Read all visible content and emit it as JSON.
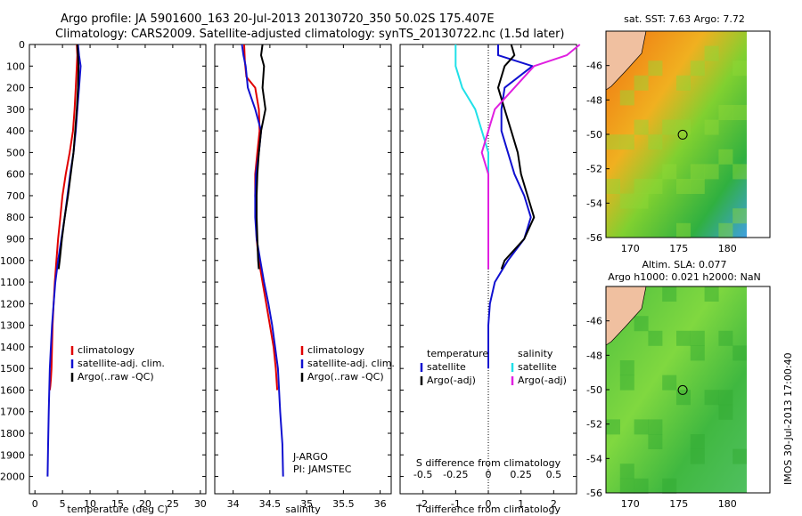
{
  "header": {
    "line1": "Argo profile: JA 5901600_163 20-Jul-2013 20130720_350 50.02S 175.407E",
    "line2": "Climatology: CARS2009. Satellite-adjusted climatology: synTS_20130722.nc (1.5d later)"
  },
  "side_label": "IMOS 30-Jul-2013 17:00:40",
  "colors": {
    "climatology": "#e00000",
    "satellite": "#1010d0",
    "argo": "#000000",
    "sat_salinity": "#20e0e8",
    "argo_salinity": "#e020e0"
  },
  "chart_data": [
    {
      "type": "line",
      "xlabel": "temperature (deg C)",
      "xlim": [
        -1,
        31
      ],
      "ylim": [
        0,
        2080
      ],
      "y_reversed": true,
      "xticks": [
        0,
        5,
        10,
        15,
        20,
        25,
        30
      ],
      "yticks": [
        0,
        100,
        200,
        300,
        400,
        500,
        600,
        700,
        800,
        900,
        1000,
        1100,
        1200,
        1300,
        1400,
        1500,
        1600,
        1700,
        1800,
        1900,
        2000
      ],
      "legend": [
        "climatology",
        "satellite-adj. clim.",
        "Argo(..raw -QC)"
      ],
      "series": [
        {
          "name": "climatology",
          "x": [
            7.6,
            7.7,
            7.6,
            7.4,
            7.2,
            6.9,
            6.3,
            5.6,
            5.0,
            4.6,
            4.2,
            3.9,
            3.6,
            3.4,
            3.2,
            3.1,
            3.0,
            2.9,
            2.8,
            2.7
          ],
          "y": [
            0,
            50,
            100,
            200,
            300,
            400,
            500,
            600,
            700,
            800,
            900,
            1000,
            1100,
            1200,
            1300,
            1400,
            1500,
            1550,
            1580,
            1600
          ]
        },
        {
          "name": "satellite-adj. clim.",
          "x": [
            7.8,
            8.0,
            8.3,
            8.0,
            7.7,
            7.4,
            7.0,
            6.4,
            5.9,
            5.4,
            4.8,
            4.2,
            3.7,
            3.4,
            3.1,
            2.9,
            2.7,
            2.5,
            2.4,
            2.3
          ],
          "y": [
            0,
            50,
            100,
            200,
            300,
            400,
            500,
            600,
            700,
            800,
            900,
            1000,
            1100,
            1200,
            1300,
            1400,
            1500,
            1700,
            1850,
            2000
          ]
        },
        {
          "name": "Argo(..raw -QC)",
          "x": [
            7.7,
            7.8,
            7.9,
            7.8,
            7.6,
            7.3,
            7.0,
            6.5,
            6.0,
            5.4,
            4.9,
            4.5,
            4.3
          ],
          "y": [
            0,
            50,
            100,
            200,
            300,
            400,
            500,
            600,
            700,
            800,
            900,
            1000,
            1040
          ]
        }
      ]
    },
    {
      "type": "line",
      "xlabel": "salinity",
      "xlim": [
        33.75,
        36.15
      ],
      "ylim": [
        0,
        2080
      ],
      "y_reversed": true,
      "xticks": [
        34,
        34.5,
        35,
        35.5,
        36
      ],
      "legend": [
        "climatology",
        "satellite-adj. clim.",
        "Argo(..raw -QC)"
      ],
      "annotation": [
        "J-ARGO",
        "PI: JAMSTEC"
      ],
      "series": [
        {
          "name": "climatology",
          "x": [
            34.15,
            34.16,
            34.18,
            34.3,
            34.35,
            34.36,
            34.33,
            34.3,
            34.3,
            34.31,
            34.32,
            34.35,
            34.4,
            34.45,
            34.5,
            34.55,
            34.58,
            34.6
          ],
          "y": [
            0,
            80,
            150,
            200,
            300,
            400,
            500,
            600,
            700,
            800,
            900,
            1000,
            1100,
            1200,
            1300,
            1400,
            1500,
            1600
          ]
        },
        {
          "name": "satellite-adj. clim.",
          "x": [
            34.12,
            34.14,
            34.17,
            34.2,
            34.3,
            34.38,
            34.35,
            34.31,
            34.3,
            34.3,
            34.32,
            34.37,
            34.42,
            34.48,
            34.53,
            34.57,
            34.61,
            34.64,
            34.67,
            34.68
          ],
          "y": [
            0,
            50,
            100,
            200,
            300,
            400,
            500,
            600,
            700,
            800,
            900,
            1000,
            1100,
            1200,
            1300,
            1400,
            1500,
            1700,
            1850,
            2000
          ]
        },
        {
          "name": "Argo(..raw -QC)",
          "x": [
            34.4,
            34.38,
            34.42,
            34.4,
            34.44,
            34.38,
            34.35,
            34.33,
            34.32,
            34.32,
            34.33,
            34.34,
            34.35
          ],
          "y": [
            0,
            50,
            100,
            200,
            300,
            400,
            500,
            600,
            700,
            800,
            900,
            1000,
            1040
          ]
        }
      ]
    },
    {
      "type": "line",
      "xlabel": "T difference from climatology",
      "x2label": "S difference from climatology",
      "xlim": [
        -2.7,
        2.7
      ],
      "x2lim": [
        -0.675,
        0.675
      ],
      "ylim": [
        0,
        2080
      ],
      "y_reversed": true,
      "xticks": [
        -2,
        -1,
        0,
        1,
        2
      ],
      "x2ticks": [
        -0.5,
        -0.25,
        0,
        0.25,
        0.5
      ],
      "legend_headers": [
        "temperature",
        "salinity"
      ],
      "legend": [
        "satellite",
        "Argo(-adj)",
        "satellite",
        "Argo(-adj)"
      ],
      "series": [
        {
          "name": "satellite",
          "x": [
            0.3,
            0.3,
            1.35,
            0.5,
            0.4,
            0.4,
            0.6,
            0.8,
            1.1,
            1.3,
            1.1,
            0.6,
            0.2,
            0.05,
            0.0,
            0.0,
            0.0
          ],
          "y": [
            0,
            50,
            100,
            200,
            300,
            400,
            500,
            600,
            700,
            800,
            900,
            1000,
            1100,
            1200,
            1300,
            1400,
            1500
          ]
        },
        {
          "name": "Argo(-adj)",
          "x": [
            0.7,
            0.8,
            0.5,
            0.3,
            0.5,
            0.7,
            0.9,
            1.0,
            1.2,
            1.4,
            1.1,
            0.5,
            0.4
          ],
          "y": [
            0,
            50,
            100,
            200,
            300,
            400,
            500,
            600,
            700,
            800,
            900,
            1000,
            1040
          ]
        },
        {
          "name": "satellite",
          "x": [
            -0.25,
            -0.25,
            -0.25,
            -0.2,
            -0.1,
            -0.05,
            0.0,
            0.0,
            0.0,
            0.0,
            0.0
          ],
          "y": [
            0,
            50,
            100,
            200,
            300,
            400,
            500,
            600,
            700,
            800,
            900
          ]
        },
        {
          "name": "Argo(-adj)",
          "x": [
            0.7,
            0.6,
            0.35,
            0.2,
            0.05,
            0.0,
            -0.05,
            0.0,
            0.0,
            0.0,
            0.0,
            0.0
          ],
          "y": [
            0,
            50,
            100,
            200,
            300,
            400,
            500,
            600,
            700,
            800,
            900,
            1040
          ]
        }
      ]
    },
    {
      "type": "heatmap",
      "title": "sat. SST: 7.63  Argo: 7.72",
      "xticks": [
        170,
        175,
        180
      ],
      "yticks": [
        -46,
        -48,
        -50,
        -52,
        -54,
        -56
      ],
      "xlim": [
        167.5,
        182
      ],
      "ylim": [
        -56,
        -44
      ],
      "marker": {
        "lon": 175.4,
        "lat": -50.02
      }
    },
    {
      "type": "heatmap",
      "title": "Altim. SLA: 0.077",
      "subtitle": "Argo h1000: 0.021  h2000: NaN",
      "xticks": [
        170,
        175,
        180
      ],
      "yticks": [
        -46,
        -48,
        -50,
        -52,
        -54,
        -56
      ],
      "xlim": [
        167.5,
        182
      ],
      "ylim": [
        -56,
        -44
      ],
      "marker": {
        "lon": 175.4,
        "lat": -50.02
      }
    }
  ]
}
